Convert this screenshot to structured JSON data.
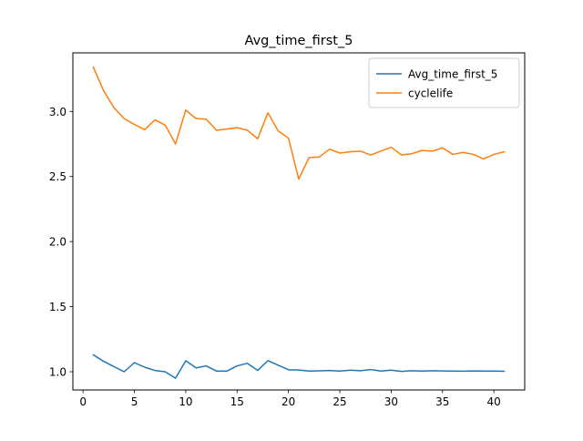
{
  "chart_data": {
    "type": "line",
    "title": "Avg_time_first_5",
    "xlabel": "",
    "ylabel": "",
    "xlim": [
      -0.99,
      43.0
    ],
    "ylim": [
      0.86,
      3.45
    ],
    "x_ticks": [
      0,
      5,
      10,
      15,
      20,
      25,
      30,
      35,
      40
    ],
    "y_ticks": [
      1.0,
      1.5,
      2.0,
      2.5,
      3.0
    ],
    "y_tick_labels": [
      "1.0",
      "1.5",
      "2.0",
      "2.5",
      "3.0"
    ],
    "grid": false,
    "legend_position": "top-right",
    "x": [
      1,
      2,
      3,
      4,
      5,
      6,
      7,
      8,
      9,
      10,
      11,
      12,
      13,
      14,
      15,
      16,
      17,
      18,
      19,
      20,
      21,
      22,
      23,
      24,
      25,
      26,
      27,
      28,
      29,
      30,
      31,
      32,
      33,
      34,
      35,
      36,
      37,
      38,
      39,
      40,
      41
    ],
    "series": [
      {
        "name": "Avg_time_first_5",
        "color": "#1f77b4",
        "values": [
          1.13,
          1.08,
          1.04,
          1.0,
          1.07,
          1.035,
          1.01,
          1.0,
          0.95,
          1.085,
          1.03,
          1.045,
          1.005,
          1.005,
          1.045,
          1.065,
          1.01,
          1.085,
          1.05,
          1.015,
          1.013,
          1.005,
          1.007,
          1.01,
          1.005,
          1.012,
          1.008,
          1.017,
          1.005,
          1.012,
          1.003,
          1.008,
          1.005,
          1.008,
          1.006,
          1.005,
          1.004,
          1.006,
          1.005,
          1.005,
          1.004
        ]
      },
      {
        "name": "cyclelife",
        "color": "#ff7f0e",
        "values": [
          3.34,
          3.16,
          3.03,
          2.945,
          2.9,
          2.86,
          2.935,
          2.895,
          2.75,
          3.01,
          2.945,
          2.94,
          2.855,
          2.865,
          2.875,
          2.855,
          2.79,
          2.99,
          2.85,
          2.795,
          2.48,
          2.645,
          2.65,
          2.71,
          2.68,
          2.69,
          2.695,
          2.665,
          2.695,
          2.725,
          2.665,
          2.675,
          2.7,
          2.695,
          2.72,
          2.67,
          2.685,
          2.67,
          2.635,
          2.67,
          2.69
        ]
      }
    ]
  }
}
